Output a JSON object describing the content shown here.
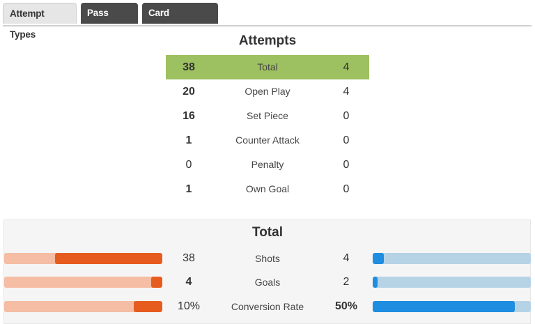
{
  "tabs": [
    {
      "label": "Attempt Types",
      "active": true
    },
    {
      "label": "Pass Types",
      "active": false
    },
    {
      "label": "Card Situations",
      "active": false
    }
  ],
  "attempts": {
    "title": "Attempts",
    "rows": [
      {
        "label": "Total",
        "left": "38",
        "right": "4",
        "highlight": true
      },
      {
        "label": "Open Play",
        "left": "20",
        "right": "4"
      },
      {
        "label": "Set Piece",
        "left": "16",
        "right": "0"
      },
      {
        "label": "Counter Attack",
        "left": "1",
        "right": "0"
      },
      {
        "label": "Penalty",
        "left": "0",
        "right": "0"
      },
      {
        "label": "Own Goal",
        "left": "1",
        "right": "0"
      }
    ]
  },
  "total": {
    "title": "Total",
    "rows": [
      {
        "label": "Shots",
        "left": "38",
        "right": "4",
        "left_fill": 0.68,
        "right_fill": 0.07
      },
      {
        "label": "Goals",
        "left": "4",
        "right": "2",
        "left_fill": 0.07,
        "right_fill": 0.03
      },
      {
        "label": "Conversion Rate",
        "left": "10%",
        "right": "50%",
        "left_fill": 0.18,
        "right_fill": 0.9
      }
    ]
  },
  "colors": {
    "highlight": "#9dc060",
    "left_fill": "#e65c1f",
    "left_track": "#f5bda3",
    "right_fill": "#1f8de0",
    "right_track": "#b6d3e6",
    "tab_inactive": "#4a4a4a"
  }
}
